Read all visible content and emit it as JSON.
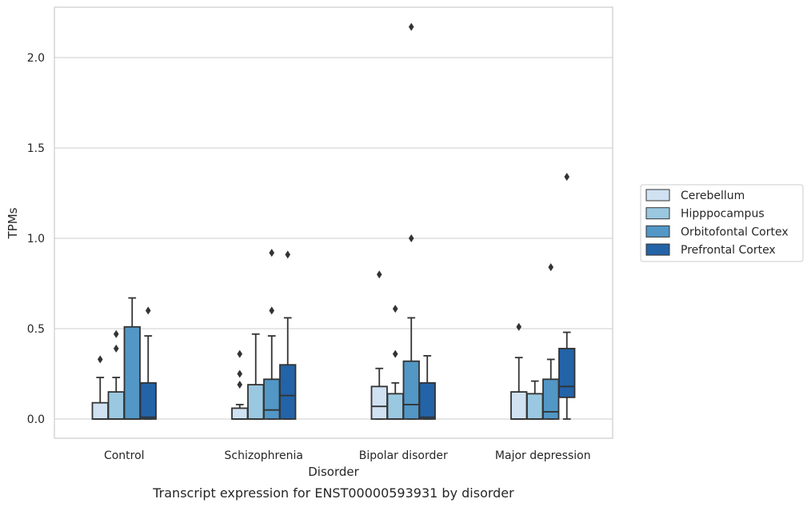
{
  "chart_data": {
    "type": "box",
    "title": "",
    "caption": "Transcript expression for ENST00000593931 by disorder",
    "xlabel": "Disorder",
    "ylabel": "TPMs",
    "ylim": [
      -0.105,
      2.29
    ],
    "yticks": [
      0.0,
      0.5,
      1.0,
      1.5,
      2.0
    ],
    "ytick_labels": [
      "0.0",
      "0.5",
      "1.0",
      "1.5",
      "2.0"
    ],
    "grid": "horizontal",
    "legend_position": "right",
    "categories": [
      "Control",
      "Schizophrenia",
      "Bipolar disorder",
      "Major depression"
    ],
    "series": [
      {
        "name": "Cerebellum",
        "color": "#d0e1f2",
        "boxes": [
          {
            "whislo": 0.0,
            "q1": 0.0,
            "med": 0.0,
            "q3": 0.09,
            "whishi": 0.23,
            "fliers": [
              0.33
            ]
          },
          {
            "whislo": 0.0,
            "q1": 0.0,
            "med": 0.0,
            "q3": 0.06,
            "whishi": 0.08,
            "fliers": [
              0.19,
              0.25,
              0.36
            ]
          },
          {
            "whislo": 0.0,
            "q1": 0.0,
            "med": 0.07,
            "q3": 0.18,
            "whishi": 0.28,
            "fliers": [
              0.8
            ]
          },
          {
            "whislo": 0.0,
            "q1": 0.0,
            "med": 0.0,
            "q3": 0.15,
            "whishi": 0.34,
            "fliers": [
              0.51
            ]
          }
        ]
      },
      {
        "name": "Hipppocampus",
        "color": "#9ac8e0",
        "boxes": [
          {
            "whislo": 0.0,
            "q1": 0.0,
            "med": 0.0,
            "q3": 0.15,
            "whishi": 0.23,
            "fliers": [
              0.39,
              0.47
            ]
          },
          {
            "whislo": 0.0,
            "q1": 0.0,
            "med": 0.0,
            "q3": 0.19,
            "whishi": 0.47,
            "fliers": []
          },
          {
            "whislo": 0.0,
            "q1": 0.0,
            "med": 0.0,
            "q3": 0.14,
            "whishi": 0.2,
            "fliers": [
              0.36,
              0.61
            ]
          },
          {
            "whislo": 0.0,
            "q1": 0.0,
            "med": 0.0,
            "q3": 0.14,
            "whishi": 0.21,
            "fliers": []
          }
        ]
      },
      {
        "name": "Orbitofontal Cortex",
        "color": "#5297c6",
        "boxes": [
          {
            "whislo": 0.0,
            "q1": 0.0,
            "med": 0.0,
            "q3": 0.51,
            "whishi": 0.67,
            "fliers": []
          },
          {
            "whislo": 0.0,
            "q1": 0.0,
            "med": 0.05,
            "q3": 0.22,
            "whishi": 0.46,
            "fliers": [
              0.6,
              0.92
            ]
          },
          {
            "whislo": 0.0,
            "q1": 0.0,
            "med": 0.08,
            "q3": 0.32,
            "whishi": 0.56,
            "fliers": [
              1.0,
              2.17
            ]
          },
          {
            "whislo": 0.0,
            "q1": 0.0,
            "med": 0.04,
            "q3": 0.22,
            "whishi": 0.33,
            "fliers": [
              0.84
            ]
          }
        ]
      },
      {
        "name": "Prefrontal Cortex",
        "color": "#2363a7",
        "boxes": [
          {
            "whislo": 0.0,
            "q1": 0.0,
            "med": 0.01,
            "q3": 0.2,
            "whishi": 0.46,
            "fliers": [
              0.6
            ]
          },
          {
            "whislo": 0.0,
            "q1": 0.0,
            "med": 0.13,
            "q3": 0.3,
            "whishi": 0.56,
            "fliers": [
              0.91
            ]
          },
          {
            "whislo": 0.0,
            "q1": 0.0,
            "med": 0.01,
            "q3": 0.2,
            "whishi": 0.35,
            "fliers": []
          },
          {
            "whislo": 0.0,
            "q1": 0.12,
            "med": 0.18,
            "q3": 0.39,
            "whishi": 0.48,
            "fliers": [
              1.34
            ]
          }
        ]
      }
    ]
  }
}
